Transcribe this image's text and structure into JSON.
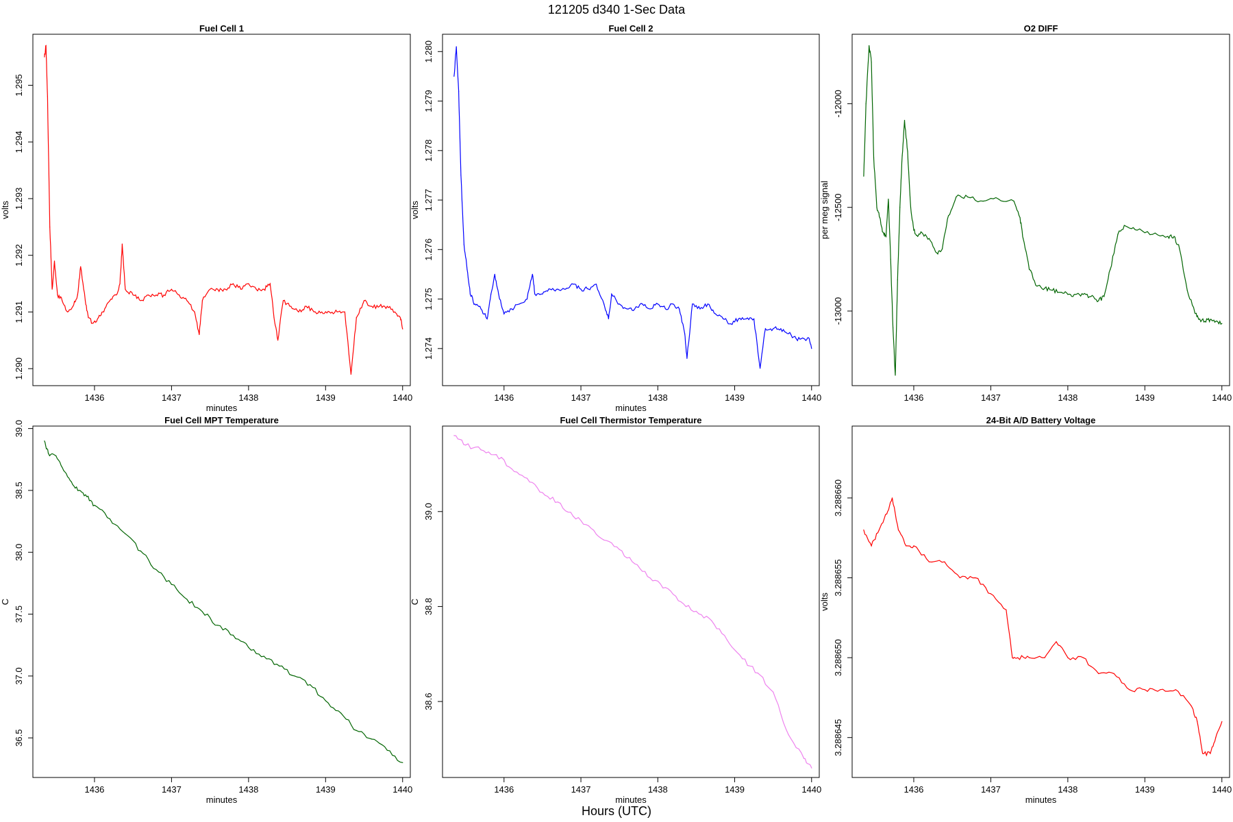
{
  "page_title": "121205   d340   1-Sec Data",
  "bottom_label": "Hours (UTC)",
  "chart_data": [
    {
      "type": "line",
      "title": "Fuel Cell 1",
      "xlabel": "minutes",
      "ylabel": "volts",
      "color": "#ff0000",
      "xlim": [
        1435.2,
        1440.1
      ],
      "ylim": [
        1.2897,
        1.2959
      ],
      "xticks": [
        1436,
        1437,
        1438,
        1439,
        1440
      ],
      "xtick_labels": [
        "1436",
        "1437",
        "1438",
        "1439",
        "1440"
      ],
      "yticks": [
        1.29,
        1.291,
        1.292,
        1.293,
        1.294,
        1.295
      ],
      "ytick_labels": [
        "1.290",
        "1.291",
        "1.292",
        "1.293",
        "1.294",
        "1.295"
      ],
      "series": [
        {
          "x": [
            1435.35,
            1435.37,
            1435.39,
            1435.42,
            1435.45,
            1435.48,
            1435.52,
            1435.58,
            1435.65,
            1435.72,
            1435.78,
            1435.82,
            1435.88,
            1435.92,
            1435.98,
            1436.05,
            1436.12,
            1436.2,
            1436.28,
            1436.33,
            1436.36,
            1436.4,
            1436.5,
            1436.6,
            1436.7,
            1436.8,
            1436.9,
            1437.0,
            1437.1,
            1437.2,
            1437.3,
            1437.36,
            1437.4,
            1437.5,
            1437.6,
            1437.7,
            1437.8,
            1437.9,
            1438.0,
            1438.1,
            1438.2,
            1438.28,
            1438.33,
            1438.38,
            1438.45,
            1438.55,
            1438.65,
            1438.75,
            1438.85,
            1438.95,
            1439.05,
            1439.15,
            1439.25,
            1439.33,
            1439.4,
            1439.5,
            1439.6,
            1439.7,
            1439.8,
            1439.9,
            1439.97,
            1440.0
          ],
          "y": [
            1.2955,
            1.2957,
            1.2948,
            1.2925,
            1.2914,
            1.2919,
            1.2913,
            1.2912,
            1.291,
            1.2911,
            1.2913,
            1.2918,
            1.2912,
            1.2909,
            1.2908,
            1.2909,
            1.291,
            1.2912,
            1.2913,
            1.2915,
            1.2922,
            1.2914,
            1.2913,
            1.2912,
            1.2913,
            1.2913,
            1.2913,
            1.2914,
            1.2913,
            1.2912,
            1.291,
            1.2906,
            1.2912,
            1.2914,
            1.2914,
            1.2914,
            1.2915,
            1.2914,
            1.2915,
            1.2914,
            1.2914,
            1.2915,
            1.2909,
            1.2905,
            1.2912,
            1.2911,
            1.291,
            1.2911,
            1.291,
            1.291,
            1.291,
            1.291,
            1.291,
            1.2899,
            1.2909,
            1.2912,
            1.2911,
            1.2911,
            1.2911,
            1.291,
            1.2909,
            1.2907
          ]
        }
      ]
    },
    {
      "type": "line",
      "title": "Fuel Cell 2",
      "xlabel": "minutes",
      "ylabel": "volts",
      "color": "#0000ff",
      "xlim": [
        1435.2,
        1440.1
      ],
      "ylim": [
        1.27325,
        1.28035
      ],
      "xticks": [
        1436,
        1437,
        1438,
        1439,
        1440
      ],
      "xtick_labels": [
        "1436",
        "1437",
        "1438",
        "1439",
        "1440"
      ],
      "yticks": [
        1.274,
        1.275,
        1.276,
        1.277,
        1.278,
        1.279,
        1.28
      ],
      "ytick_labels": [
        "1.274",
        "1.275",
        "1.276",
        "1.277",
        "1.278",
        "1.279",
        "1.280"
      ],
      "series": [
        {
          "x": [
            1435.35,
            1435.38,
            1435.41,
            1435.44,
            1435.48,
            1435.52,
            1435.56,
            1435.62,
            1435.7,
            1435.78,
            1435.83,
            1435.88,
            1435.93,
            1436.0,
            1436.1,
            1436.2,
            1436.3,
            1436.37,
            1436.4,
            1436.5,
            1436.6,
            1436.7,
            1436.8,
            1436.9,
            1437.0,
            1437.1,
            1437.2,
            1437.3,
            1437.36,
            1437.4,
            1437.5,
            1437.6,
            1437.7,
            1437.8,
            1437.9,
            1438.0,
            1438.1,
            1438.2,
            1438.28,
            1438.35,
            1438.38,
            1438.45,
            1438.55,
            1438.65,
            1438.75,
            1438.85,
            1438.95,
            1439.05,
            1439.15,
            1439.25,
            1439.33,
            1439.4,
            1439.5,
            1439.6,
            1439.7,
            1439.8,
            1439.9,
            1439.97,
            1440.0
          ],
          "y": [
            1.2795,
            1.2801,
            1.2792,
            1.2775,
            1.2761,
            1.2756,
            1.2751,
            1.2749,
            1.2748,
            1.2746,
            1.2751,
            1.2755,
            1.2751,
            1.2747,
            1.2748,
            1.2749,
            1.275,
            1.2755,
            1.2751,
            1.2751,
            1.2752,
            1.2752,
            1.2752,
            1.2753,
            1.2752,
            1.2752,
            1.2753,
            1.2749,
            1.2746,
            1.2751,
            1.2749,
            1.2748,
            1.2748,
            1.2749,
            1.2748,
            1.2749,
            1.2748,
            1.2749,
            1.2748,
            1.2743,
            1.2738,
            1.2749,
            1.2748,
            1.2749,
            1.2747,
            1.2746,
            1.2745,
            1.2746,
            1.2746,
            1.2746,
            1.2736,
            1.2744,
            1.2744,
            1.2744,
            1.2743,
            1.2742,
            1.2742,
            1.2742,
            1.274
          ]
        }
      ]
    },
    {
      "type": "line",
      "title": "O2 DIFF",
      "xlabel": "",
      "ylabel": "per meg signal",
      "color": "#006400",
      "xlim": [
        1435.2,
        1440.1
      ],
      "ylim": [
        -13360,
        -11665
      ],
      "xticks": [
        1436,
        1437,
        1438,
        1439,
        1440
      ],
      "xtick_labels": [
        "1436",
        "1437",
        "1438",
        "1439",
        "1440"
      ],
      "yticks": [
        -13000,
        -12500,
        -12000
      ],
      "ytick_labels": [
        "-13000",
        "-12500",
        "-12000"
      ],
      "series": [
        {
          "x": [
            1435.35,
            1435.38,
            1435.42,
            1435.45,
            1435.48,
            1435.52,
            1435.56,
            1435.6,
            1435.64,
            1435.67,
            1435.7,
            1435.73,
            1435.76,
            1435.79,
            1435.82,
            1435.85,
            1435.88,
            1435.92,
            1435.96,
            1436.0,
            1436.05,
            1436.1,
            1436.2,
            1436.3,
            1436.37,
            1436.45,
            1436.55,
            1436.7,
            1436.9,
            1437.1,
            1437.3,
            1437.38,
            1437.42,
            1437.5,
            1437.6,
            1437.7,
            1437.8,
            1437.9,
            1438.0,
            1438.1,
            1438.2,
            1438.3,
            1438.4,
            1438.47,
            1438.55,
            1438.65,
            1438.75,
            1438.9,
            1439.1,
            1439.3,
            1439.38,
            1439.45,
            1439.55,
            1439.65,
            1439.7,
            1439.78,
            1439.85,
            1439.92,
            1440.0
          ],
          "y": [
            -12350,
            -12000,
            -11720,
            -11800,
            -12260,
            -12500,
            -12550,
            -12620,
            -12640,
            -12460,
            -12750,
            -13080,
            -13310,
            -12850,
            -12500,
            -12250,
            -12080,
            -12230,
            -12500,
            -12610,
            -12640,
            -12620,
            -12650,
            -12720,
            -12700,
            -12540,
            -12450,
            -12450,
            -12470,
            -12460,
            -12470,
            -12550,
            -12650,
            -12800,
            -12880,
            -12890,
            -12900,
            -12910,
            -12920,
            -12920,
            -12920,
            -12930,
            -12950,
            -12930,
            -12800,
            -12630,
            -12590,
            -12610,
            -12630,
            -12640,
            -12640,
            -12700,
            -12900,
            -13010,
            -13040,
            -13050,
            -13040,
            -13050,
            -13060
          ]
        }
      ]
    },
    {
      "type": "line",
      "title": "Fuel Cell MPT Temperature",
      "xlabel": "minutes",
      "ylabel": "C",
      "color": "#006400",
      "xlim": [
        1435.2,
        1440.1
      ],
      "ylim": [
        36.18,
        39.02
      ],
      "xticks": [
        1436,
        1437,
        1438,
        1439,
        1440
      ],
      "xtick_labels": [
        "1436",
        "1437",
        "1438",
        "1439",
        "1440"
      ],
      "yticks": [
        36.5,
        37.0,
        37.5,
        38.0,
        38.5,
        39.0
      ],
      "ytick_labels": [
        "36.5",
        "37.0",
        "37.5",
        "38.0",
        "38.5",
        "39.0"
      ],
      "series": [
        {
          "x": [
            1435.35,
            1435.4,
            1435.5,
            1435.6,
            1435.7,
            1435.8,
            1435.9,
            1436.0,
            1436.2,
            1436.4,
            1436.6,
            1436.8,
            1437.0,
            1437.2,
            1437.4,
            1437.6,
            1437.8,
            1438.0,
            1438.2,
            1438.4,
            1438.6,
            1438.8,
            1439.0,
            1439.2,
            1439.4,
            1439.6,
            1439.8,
            1440.0
          ],
          "y": [
            38.9,
            38.8,
            38.78,
            38.66,
            38.57,
            38.5,
            38.45,
            38.38,
            38.27,
            38.15,
            38.01,
            37.86,
            37.74,
            37.62,
            37.52,
            37.41,
            37.33,
            37.23,
            37.16,
            37.08,
            37.0,
            36.93,
            36.8,
            36.7,
            36.56,
            36.49,
            36.4,
            36.3
          ]
        }
      ]
    },
    {
      "type": "line",
      "title": "Fuel Cell Thermistor Temperature",
      "xlabel": "minutes",
      "ylabel": "C",
      "color": "#ee82ee",
      "xlim": [
        1435.2,
        1440.1
      ],
      "ylim": [
        38.44,
        39.18
      ],
      "xticks": [
        1436,
        1437,
        1438,
        1439,
        1440
      ],
      "xtick_labels": [
        "1436",
        "1437",
        "1438",
        "1439",
        "1440"
      ],
      "yticks": [
        38.6,
        38.8,
        39.0
      ],
      "ytick_labels": [
        "38.6",
        "38.8",
        "39.0"
      ],
      "series": [
        {
          "x": [
            1435.35,
            1435.5,
            1435.7,
            1435.9,
            1436.1,
            1436.3,
            1436.5,
            1436.7,
            1436.9,
            1437.1,
            1437.3,
            1437.5,
            1437.7,
            1437.9,
            1438.1,
            1438.3,
            1438.5,
            1438.7,
            1438.9,
            1439.1,
            1439.3,
            1439.5,
            1439.7,
            1439.9,
            1440.0
          ],
          "y": [
            39.16,
            39.14,
            39.13,
            39.12,
            39.09,
            39.07,
            39.04,
            39.02,
            38.99,
            38.97,
            38.94,
            38.92,
            38.89,
            38.86,
            38.84,
            38.81,
            38.79,
            38.77,
            38.73,
            38.69,
            38.66,
            38.62,
            38.53,
            38.48,
            38.46
          ]
        }
      ]
    },
    {
      "type": "line",
      "title": "24-Bit A/D Battery Voltage",
      "xlabel": "minutes",
      "ylabel": "volts",
      "color": "#ff0000",
      "xlim": [
        1435.2,
        1440.1
      ],
      "ylim": [
        3.2886425,
        3.2886645
      ],
      "xticks": [
        1436,
        1437,
        1438,
        1439,
        1440
      ],
      "xtick_labels": [
        "1436",
        "1437",
        "1438",
        "1439",
        "1440"
      ],
      "yticks": [
        3.288645,
        3.28865,
        3.288655,
        3.28866
      ],
      "ytick_labels": [
        "3.288645",
        "3.288650",
        "3.288655",
        "3.288660"
      ],
      "series": [
        {
          "x": [
            1435.35,
            1435.45,
            1435.55,
            1435.65,
            1435.72,
            1435.8,
            1435.9,
            1436.0,
            1436.2,
            1436.4,
            1436.6,
            1436.8,
            1437.0,
            1437.2,
            1437.28,
            1437.35,
            1437.5,
            1437.7,
            1437.85,
            1438.0,
            1438.2,
            1438.4,
            1438.6,
            1438.8,
            1439.0,
            1439.2,
            1439.4,
            1439.6,
            1439.68,
            1439.75,
            1439.85,
            1439.92,
            1440.0
          ],
          "y": [
            3.288658,
            3.288657,
            3.288658,
            3.288659,
            3.28866,
            3.288658,
            3.288657,
            3.288657,
            3.288656,
            3.288656,
            3.288655,
            3.288655,
            3.288654,
            3.288653,
            3.28865,
            3.28865,
            3.28865,
            3.28865,
            3.288651,
            3.28865,
            3.28865,
            3.288649,
            3.288649,
            3.288648,
            3.288648,
            3.288648,
            3.288648,
            3.288647,
            3.288646,
            3.288644,
            3.288644,
            3.288645,
            3.288646
          ]
        }
      ]
    }
  ]
}
